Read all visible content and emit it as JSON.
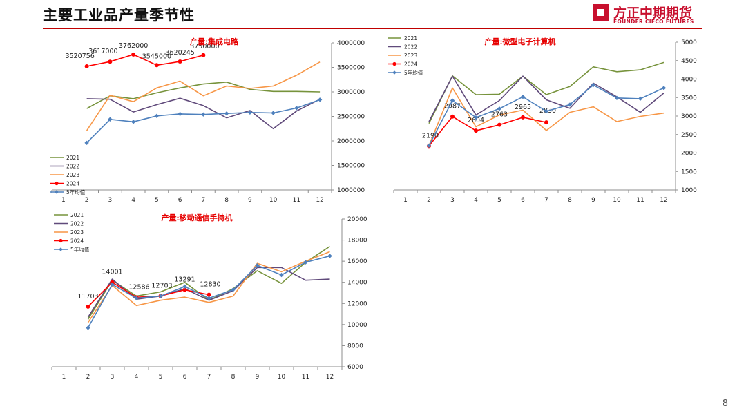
{
  "page": {
    "title": "主要工业品产量季节性",
    "logo_cn": "方正中期期货",
    "logo_en": "FOUNDER CIFCO FUTURES",
    "page_number": "8"
  },
  "colors": {
    "2021": "#77933c",
    "2022": "#604a7b",
    "2023": "#f79646",
    "2024": "#ff0000",
    "avg": "#4f81bd",
    "title_rule": "#c00000"
  },
  "chart_data": [
    {
      "type": "line",
      "title": "产量:集成电路",
      "x": [
        1,
        2,
        3,
        4,
        5,
        6,
        7,
        8,
        9,
        10,
        11,
        12
      ],
      "ylim": [
        1000000,
        4000000
      ],
      "yticks": [
        1000000,
        1500000,
        2000000,
        2500000,
        3000000,
        3500000,
        4000000
      ],
      "y_axis_side": "right",
      "legend_position": "bottom-left",
      "series": [
        {
          "name": "2021",
          "values": [
            null,
            2660000,
            2920000,
            2860000,
            2980000,
            3080000,
            3160000,
            3200000,
            3050000,
            3010000,
            3010000,
            3000000
          ]
        },
        {
          "name": "2022",
          "values": [
            null,
            2860000,
            2850000,
            2590000,
            2740000,
            2870000,
            2720000,
            2470000,
            2620000,
            2250000,
            2610000,
            2850000
          ]
        },
        {
          "name": "2023",
          "values": [
            null,
            2210000,
            2930000,
            2800000,
            3080000,
            3220000,
            2920000,
            3120000,
            3070000,
            3120000,
            3340000,
            3610000
          ]
        },
        {
          "name": "2024",
          "values": [
            null,
            3520756,
            3617000,
            3762000,
            3545000,
            3620245,
            3750000,
            null,
            null,
            null,
            null,
            null
          ],
          "labels": [
            "",
            "3520756",
            "3617000",
            "3762000",
            "3545000",
            "3620245",
            "3750000",
            "",
            "",
            "",
            "",
            ""
          ]
        },
        {
          "name": "5年均值",
          "values": [
            null,
            1960000,
            2440000,
            2390000,
            2510000,
            2550000,
            2540000,
            2560000,
            2580000,
            2570000,
            2670000,
            2840000
          ]
        }
      ]
    },
    {
      "type": "line",
      "title": "产量:微型电子计算机",
      "x": [
        1,
        2,
        3,
        4,
        5,
        6,
        7,
        8,
        9,
        10,
        11,
        12
      ],
      "ylim": [
        1000,
        5000
      ],
      "yticks": [
        1000,
        1500,
        2000,
        2500,
        3000,
        3500,
        4000,
        4500,
        5000
      ],
      "y_axis_side": "right",
      "legend_position": "top-left",
      "series": [
        {
          "name": "2021",
          "values": [
            null,
            2800,
            4090,
            3580,
            3590,
            4080,
            3580,
            3800,
            4330,
            4200,
            4250,
            4450
          ]
        },
        {
          "name": "2022",
          "values": [
            null,
            2850,
            4080,
            3030,
            3420,
            4080,
            3440,
            3210,
            3890,
            3520,
            3100,
            3620
          ]
        },
        {
          "name": "2023",
          "values": [
            null,
            2200,
            3760,
            2710,
            3030,
            3160,
            2610,
            3100,
            3250,
            2850,
            2990,
            3080
          ]
        },
        {
          "name": "2024",
          "values": [
            null,
            2190,
            2987,
            2604,
            2763,
            2965,
            2830,
            null,
            null,
            null,
            null,
            null
          ],
          "labels": [
            "",
            "2190",
            "2987",
            "2604",
            "2763",
            "2965",
            "2830",
            "",
            "",
            "",
            "",
            ""
          ]
        },
        {
          "name": "5年均值",
          "values": [
            null,
            2200,
            3420,
            2960,
            3200,
            3520,
            3130,
            3310,
            3840,
            3490,
            3470,
            3760
          ]
        }
      ]
    },
    {
      "type": "line",
      "title": "产量:移动通信手持机",
      "x": [
        1,
        2,
        3,
        4,
        5,
        6,
        7,
        8,
        9,
        10,
        11,
        12
      ],
      "ylim": [
        6000,
        20000
      ],
      "yticks": [
        6000,
        8000,
        10000,
        12000,
        14000,
        16000,
        18000,
        20000
      ],
      "y_axis_side": "right",
      "legend_position": "top-left",
      "series": [
        {
          "name": "2021",
          "values": [
            null,
            10500,
            14200,
            12700,
            13100,
            14000,
            12300,
            13400,
            15100,
            13900,
            15900,
            17400
          ]
        },
        {
          "name": "2022",
          "values": [
            null,
            10700,
            14300,
            12400,
            12700,
            13400,
            12300,
            13200,
            15400,
            15400,
            14200,
            14300
          ]
        },
        {
          "name": "2023",
          "values": [
            null,
            10200,
            13700,
            11800,
            12300,
            12600,
            12100,
            12700,
            15800,
            15000,
            16000,
            16900
          ]
        },
        {
          "name": "2024",
          "values": [
            null,
            11703,
            14001,
            12586,
            12703,
            13291,
            12830,
            null,
            null,
            null,
            null,
            null
          ],
          "labels": [
            "",
            "11703",
            "14001",
            "12586",
            "12703",
            "13291",
            "12830",
            "",
            "",
            "",
            "",
            ""
          ]
        },
        {
          "name": "5年均值",
          "values": [
            null,
            9700,
            13800,
            12500,
            12700,
            13600,
            12500,
            13300,
            15600,
            14700,
            15900,
            16500
          ]
        }
      ]
    }
  ]
}
